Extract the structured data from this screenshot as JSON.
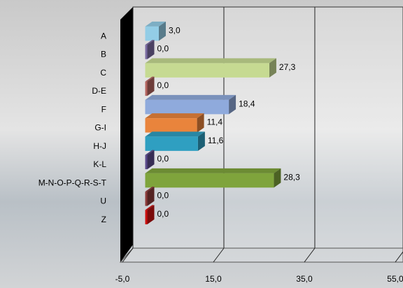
{
  "chart_data": {
    "type": "bar",
    "orientation": "horizontal",
    "categories": [
      "A",
      "B",
      "C",
      "D-E",
      "F",
      "G-I",
      "H-J",
      "K-L",
      "M-N-O-P-Q-R-S-T",
      "U",
      "Z",
      null
    ],
    "values": [
      3.0,
      0.0,
      27.3,
      0.0,
      18.4,
      11.4,
      11.6,
      0.0,
      28.3,
      0.0,
      0.0,
      null
    ],
    "value_labels": [
      "3,0",
      "0,0",
      "27,3",
      "0,0",
      "18,4",
      "11,4",
      "11,6",
      "0,0",
      "28,3",
      "0,0",
      "0,0",
      null
    ],
    "colors": [
      "#93cde6",
      "#7b6ca3",
      "#c6da92",
      "#b56560",
      "#8faadc",
      "#e9843c",
      "#2f9fc1",
      "#5b4b8c",
      "#7fa43c",
      "#8c3b3b",
      "#cc1010",
      "#cc1010"
    ],
    "xlim": [
      -5,
      56.7
    ],
    "xticks": [
      {
        "value": -5,
        "label": "-5,0"
      },
      {
        "value": 15,
        "label": "15,0"
      },
      {
        "value": 35,
        "label": "35,0"
      },
      {
        "value": 55,
        "label": "55,0"
      }
    ],
    "grid": true
  }
}
